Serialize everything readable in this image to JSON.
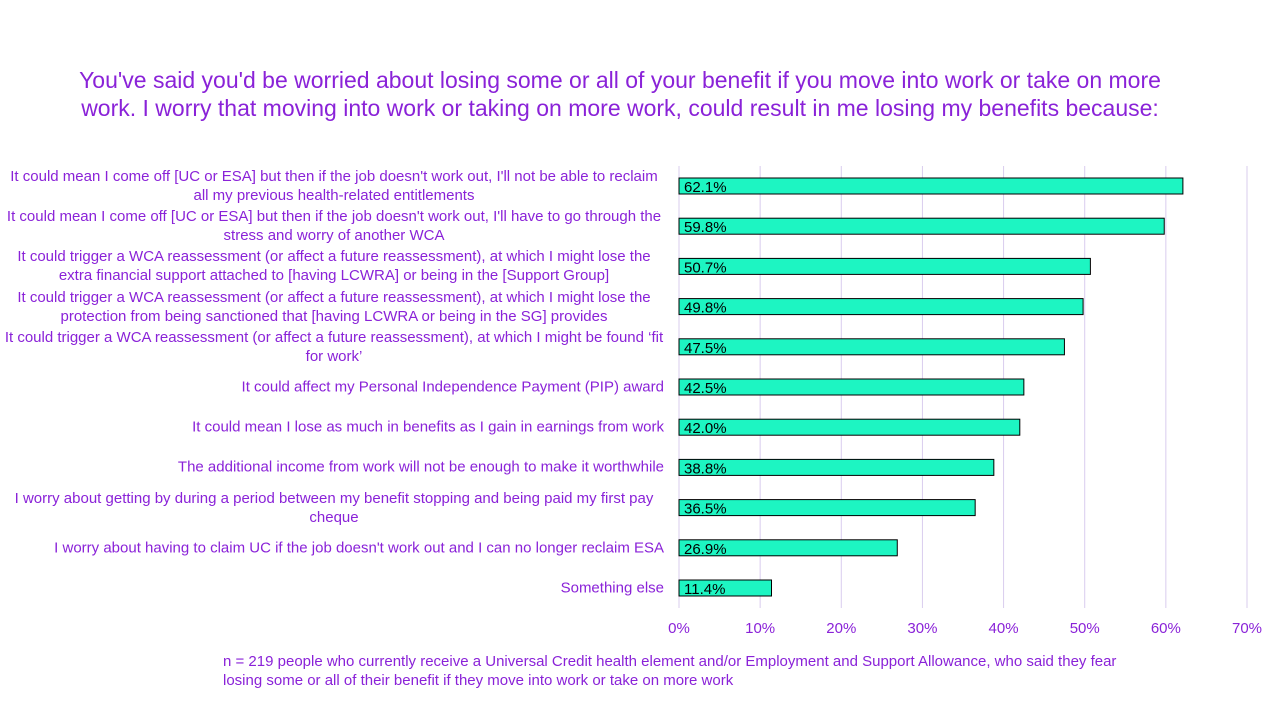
{
  "chart_data": {
    "type": "bar",
    "orientation": "horizontal",
    "title": "You've said you'd be worried about losing some or all of your benefit if you move into work or take on more work. I worry that moving into work or taking on more work, could result in me losing my benefits because:",
    "categories": [
      "It could mean I come off [UC or ESA] but then if the job doesn't work out, I'll not be able to reclaim all my previous health-related entitlements",
      "It could mean I come off [UC or ESA] but then if the job doesn't work out, I'll have to go through the stress and worry of another WCA",
      "It could trigger a WCA reassessment (or affect a future reassessment), at which I might lose the extra financial support attached to [having LCWRA] or being in the [Support Group]",
      "It could trigger a WCA reassessment (or affect a future reassessment), at which I might lose the protection from being sanctioned that [having LCWRA or being in the SG] provides",
      "It could trigger a WCA reassessment (or affect a future reassessment), at which I might be found ‘fit for work’",
      "It could affect my Personal Independence Payment (PIP) award",
      "It could mean I lose as much in benefits as I gain in earnings from work",
      "The additional income from work will not be enough to make it worthwhile",
      "I worry about getting by during a period between my benefit stopping and being paid my first pay cheque",
      "I worry about having to claim UC if the job doesn't work out and I can no longer reclaim ESA",
      "Something else"
    ],
    "values": [
      62.1,
      59.8,
      50.7,
      49.8,
      47.5,
      42.5,
      42.0,
      38.8,
      36.5,
      26.9,
      11.4
    ],
    "data_labels": [
      "62.1%",
      "59.8%",
      "50.7%",
      "49.8%",
      "47.5%",
      "42.5%",
      "42.0%",
      "38.8%",
      "36.5%",
      "26.9%",
      "11.4%"
    ],
    "xlim": [
      0,
      70
    ],
    "xticks": [
      "0%",
      "10%",
      "20%",
      "30%",
      "40%",
      "50%",
      "60%",
      "70%"
    ],
    "grid": true,
    "legend": "none",
    "colors": {
      "bar": "#1df5c2",
      "bar_border": "#000000",
      "text": "#8a22d8",
      "grid": "#d9ccee"
    },
    "note": "n = 219 people who currently receive a Universal Credit health element and/or Employment and Support Allowance, who said they fear losing some or all of their benefit if they move into work or take on more work"
  }
}
